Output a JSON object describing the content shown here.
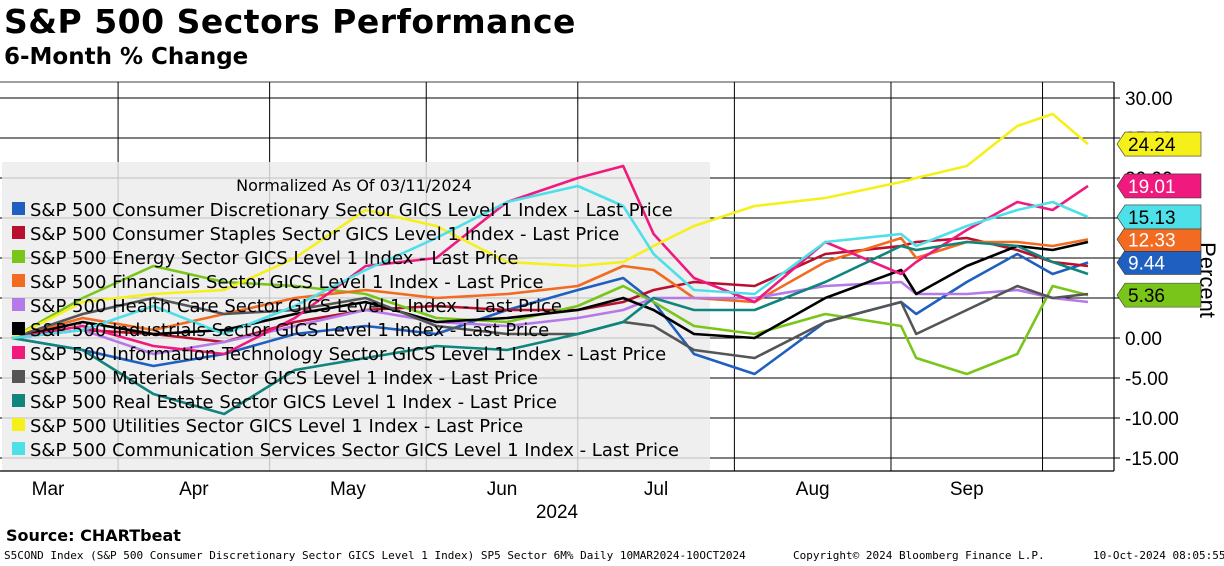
{
  "title": "S&P 500 Sectors Performance",
  "subtitle": "6-Month % Change",
  "source": "Source: CHARTbeat",
  "footer": {
    "left": "S5COND Index (S&P 500 Consumer Discretionary Sector GICS Level 1 Index) SP5 Sector 6M%  Daily 10MAR2024-10OCT2024",
    "middle": "Copyright© 2024 Bloomberg Finance L.P.",
    "right": "10-Oct-2024 08:05:55"
  },
  "chart_data": {
    "type": "line",
    "ylabel": "Percent",
    "ylim": [
      -16,
      32
    ],
    "yticks": [
      "30.00",
      "25.00",
      "20.00",
      "15.00",
      "10.00",
      "5.00",
      "0.00",
      "-5.00",
      "-10.00",
      "-15.00"
    ],
    "ytick_values": [
      30,
      25,
      20,
      15,
      10,
      5,
      0,
      -5,
      -10,
      -15
    ],
    "x_month_labels": [
      "Mar",
      "Apr",
      "May",
      "Jun",
      "Jul",
      "Aug",
      "Sep"
    ],
    "x_year_label": "2024",
    "grid": true,
    "legend": {
      "placement": "left",
      "header": "Normalized As Of 03/11/2024"
    },
    "x": [
      "2024-03-11",
      "2024-03-25",
      "2024-04-08",
      "2024-04-22",
      "2024-05-06",
      "2024-05-20",
      "2024-06-03",
      "2024-06-17",
      "2024-07-01",
      "2024-07-10",
      "2024-07-16",
      "2024-07-24",
      "2024-08-05",
      "2024-08-19",
      "2024-09-03",
      "2024-09-06",
      "2024-09-16",
      "2024-09-26",
      "2024-10-03",
      "2024-10-10"
    ],
    "series": [
      {
        "name": "S&P 500 Consumer Discretionary Sector GICS Level 1 Index - Last Price",
        "color": "#1f5fbf",
        "last_label": "9.44",
        "values": [
          0,
          -1.5,
          -3.5,
          -2.0,
          0.5,
          1.5,
          0.5,
          3.5,
          6.0,
          7.5,
          4.5,
          -2.0,
          -4.5,
          2.0,
          4.5,
          3.0,
          7.0,
          10.5,
          8.0,
          9.44
        ]
      },
      {
        "name": "S&P 500 Consumer Staples Sector GICS Level 1 Index - Last Price",
        "color": "#b8102e",
        "last_label": "",
        "values": [
          0,
          1.0,
          0.5,
          -0.5,
          2.0,
          3.5,
          4.0,
          3.5,
          3.5,
          4.5,
          6.0,
          7.0,
          6.5,
          10.5,
          11.5,
          12.0,
          12.5,
          11.0,
          9.5,
          9.0
        ]
      },
      {
        "name": "S&P 500 Energy Sector GICS Level 1 Index - Last Price",
        "color": "#7ac51a",
        "last_label": "5.36",
        "values": [
          0,
          5.0,
          9.0,
          7.0,
          6.5,
          5.5,
          2.5,
          2.0,
          4.0,
          6.5,
          4.5,
          1.5,
          0.5,
          3.0,
          1.5,
          -2.5,
          -4.5,
          -2.0,
          6.5,
          5.36
        ]
      },
      {
        "name": "S&P 500 Financials Sector GICS Level 1 Index - Last Price",
        "color": "#f26b21",
        "last_label": "12.33",
        "values": [
          0,
          2.5,
          1.0,
          3.0,
          5.0,
          6.0,
          5.0,
          5.5,
          6.5,
          9.0,
          8.5,
          5.0,
          4.5,
          9.5,
          12.5,
          10.0,
          12.0,
          12.0,
          11.5,
          12.33
        ]
      },
      {
        "name": "S&P 500 Health Care Sector GICS Level 1 Index - Last Price",
        "color": "#b57ae8",
        "last_label": "",
        "values": [
          0,
          1.0,
          -2.0,
          -0.5,
          1.5,
          3.5,
          2.0,
          1.5,
          2.5,
          3.5,
          5.0,
          5.0,
          5.0,
          6.5,
          7.0,
          5.5,
          5.5,
          6.0,
          5.0,
          4.5
        ]
      },
      {
        "name": "S&P 500 Industrials Sector GICS Level 1 Index - Last Price",
        "color": "#000000",
        "last_label": "",
        "values": [
          0,
          2.0,
          0.5,
          1.0,
          3.0,
          4.5,
          2.0,
          2.5,
          3.5,
          5.0,
          3.5,
          0.5,
          0.0,
          5.0,
          8.5,
          5.5,
          9.0,
          11.5,
          11.0,
          12.0
        ]
      },
      {
        "name": "S&P 500 Information Technology Sector GICS Level 1 Index - Last Price",
        "color": "#f0197d",
        "last_label": "19.01",
        "values": [
          0,
          1.5,
          -1.0,
          -2.0,
          2.5,
          9.0,
          10.0,
          17.0,
          20.0,
          21.5,
          13.0,
          7.5,
          4.5,
          12.0,
          8.0,
          9.5,
          13.5,
          17.0,
          16.0,
          19.01
        ]
      },
      {
        "name": "S&P 500 Materials Sector GICS Level 1 Index - Last Price",
        "color": "#555555",
        "last_label": "",
        "values": [
          0,
          3.0,
          5.0,
          3.0,
          3.5,
          5.0,
          1.5,
          0.5,
          0.5,
          2.0,
          1.5,
          -1.5,
          -2.5,
          2.0,
          4.5,
          0.5,
          3.5,
          6.5,
          5.0,
          5.5
        ]
      },
      {
        "name": "S&P 500 Real Estate Sector GICS Level 1 Index - Last Price",
        "color": "#10857d",
        "last_label": "",
        "values": [
          0,
          -1.5,
          -7.0,
          -9.5,
          -4.0,
          -2.5,
          -1.0,
          -1.5,
          0.5,
          2.0,
          5.0,
          3.5,
          3.5,
          7.0,
          11.5,
          11.0,
          12.0,
          11.5,
          9.5,
          8.0
        ]
      },
      {
        "name": "S&P 500 Utilities Sector GICS Level 1 Index - Last Price",
        "color": "#f5f01a",
        "last_label": "24.24",
        "values": [
          0,
          4.5,
          5.5,
          6.0,
          10.0,
          16.0,
          14.0,
          9.5,
          9.0,
          9.5,
          11.5,
          14.0,
          16.5,
          17.5,
          19.5,
          20.0,
          21.5,
          26.5,
          28.0,
          24.24
        ]
      },
      {
        "name": "S&P 500 Communication Services Sector GICS Level 1 Index - Last Price",
        "color": "#4de0e8",
        "last_label": "15.13",
        "values": [
          0,
          1.0,
          4.0,
          0.5,
          4.0,
          8.5,
          12.5,
          17.0,
          19.0,
          16.5,
          10.5,
          6.0,
          5.5,
          12.0,
          13.0,
          11.5,
          14.0,
          16.0,
          17.0,
          15.13
        ]
      }
    ]
  }
}
